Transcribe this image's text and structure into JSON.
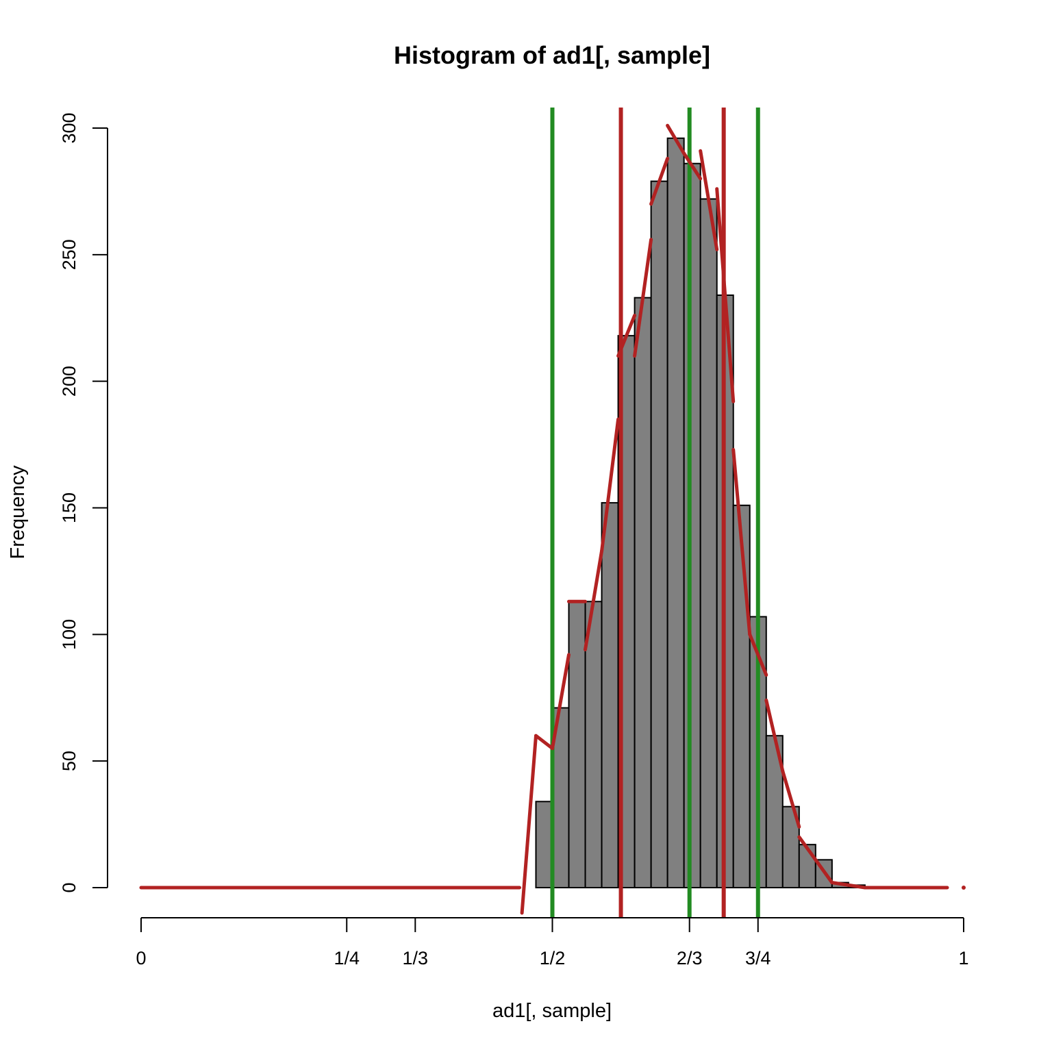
{
  "chart_data": {
    "type": "bar",
    "title": "Histogram of ad1[, sample]",
    "xlabel": "ad1[, sample]",
    "ylabel": "Frequency",
    "xlim": [
      0,
      1
    ],
    "ylim": [
      0,
      300
    ],
    "bar_color": "#808080",
    "bar_border_color": "#000000",
    "bins": [
      {
        "x0": 0.48,
        "x1": 0.5,
        "count": 34
      },
      {
        "x0": 0.5,
        "x1": 0.52,
        "count": 71
      },
      {
        "x0": 0.52,
        "x1": 0.54,
        "count": 113
      },
      {
        "x0": 0.54,
        "x1": 0.56,
        "count": 113
      },
      {
        "x0": 0.56,
        "x1": 0.58,
        "count": 152
      },
      {
        "x0": 0.58,
        "x1": 0.6,
        "count": 218
      },
      {
        "x0": 0.6,
        "x1": 0.62,
        "count": 233
      },
      {
        "x0": 0.62,
        "x1": 0.64,
        "count": 279
      },
      {
        "x0": 0.64,
        "x1": 0.66,
        "count": 296
      },
      {
        "x0": 0.66,
        "x1": 0.68,
        "count": 286
      },
      {
        "x0": 0.68,
        "x1": 0.7,
        "count": 272
      },
      {
        "x0": 0.7,
        "x1": 0.72,
        "count": 234
      },
      {
        "x0": 0.72,
        "x1": 0.74,
        "count": 151
      },
      {
        "x0": 0.74,
        "x1": 0.76,
        "count": 107
      },
      {
        "x0": 0.76,
        "x1": 0.78,
        "count": 60
      },
      {
        "x0": 0.78,
        "x1": 0.8,
        "count": 32
      },
      {
        "x0": 0.8,
        "x1": 0.82,
        "count": 17
      },
      {
        "x0": 0.82,
        "x1": 0.84,
        "count": 11
      },
      {
        "x0": 0.84,
        "x1": 0.86,
        "count": 2
      },
      {
        "x0": 0.86,
        "x1": 0.88,
        "count": 1
      }
    ],
    "y_ticks": [
      {
        "value": 0,
        "label": "0"
      },
      {
        "value": 50,
        "label": "50"
      },
      {
        "value": 100,
        "label": "100"
      },
      {
        "value": 150,
        "label": "150"
      },
      {
        "value": 200,
        "label": "200"
      },
      {
        "value": 250,
        "label": "250"
      },
      {
        "value": 300,
        "label": "300"
      }
    ],
    "x_ticks": [
      {
        "value": 0,
        "label": "0"
      },
      {
        "value": 0.25,
        "label": "1/4"
      },
      {
        "value": 0.3333,
        "label": "1/3"
      },
      {
        "value": 0.5,
        "label": "1/2"
      },
      {
        "value": 0.6667,
        "label": "2/3"
      },
      {
        "value": 0.75,
        "label": "3/4"
      },
      {
        "value": 1,
        "label": "1"
      }
    ],
    "green_vlines": {
      "color": "#228B22",
      "x": [
        0.5,
        0.6667,
        0.75
      ]
    },
    "red_vlines": {
      "color": "#B22222",
      "x": [
        0.5833,
        0.7083
      ]
    },
    "density_curve": {
      "color": "#B22222",
      "segments": [
        [
          [
            0.0,
            0
          ],
          [
            0.46,
            0
          ]
        ],
        [
          [
            0.463,
            -10
          ],
          [
            0.48,
            60
          ]
        ],
        [
          [
            0.48,
            60
          ],
          [
            0.5,
            55
          ]
        ],
        [
          [
            0.5,
            55
          ],
          [
            0.52,
            92
          ]
        ],
        [
          [
            0.52,
            113
          ],
          [
            0.54,
            113
          ]
        ],
        [
          [
            0.54,
            94
          ],
          [
            0.56,
            133
          ]
        ],
        [
          [
            0.56,
            133
          ],
          [
            0.58,
            185
          ]
        ],
        [
          [
            0.58,
            210
          ],
          [
            0.6,
            226
          ]
        ],
        [
          [
            0.6,
            210
          ],
          [
            0.62,
            256
          ]
        ],
        [
          [
            0.62,
            270
          ],
          [
            0.64,
            288
          ]
        ],
        [
          [
            0.64,
            301
          ],
          [
            0.66,
            290
          ]
        ],
        [
          [
            0.66,
            290
          ],
          [
            0.68,
            280
          ]
        ],
        [
          [
            0.68,
            291
          ],
          [
            0.7,
            252
          ]
        ],
        [
          [
            0.7,
            276
          ],
          [
            0.72,
            192
          ]
        ],
        [
          [
            0.72,
            173
          ],
          [
            0.74,
            100
          ]
        ],
        [
          [
            0.74,
            100
          ],
          [
            0.76,
            84
          ]
        ],
        [
          [
            0.76,
            74
          ],
          [
            0.78,
            46
          ]
        ],
        [
          [
            0.78,
            46
          ],
          [
            0.8,
            24
          ]
        ],
        [
          [
            0.8,
            20
          ],
          [
            0.84,
            2
          ]
        ],
        [
          [
            0.84,
            2
          ],
          [
            0.88,
            0
          ]
        ],
        [
          [
            0.88,
            0
          ],
          [
            0.98,
            0
          ]
        ]
      ]
    }
  }
}
